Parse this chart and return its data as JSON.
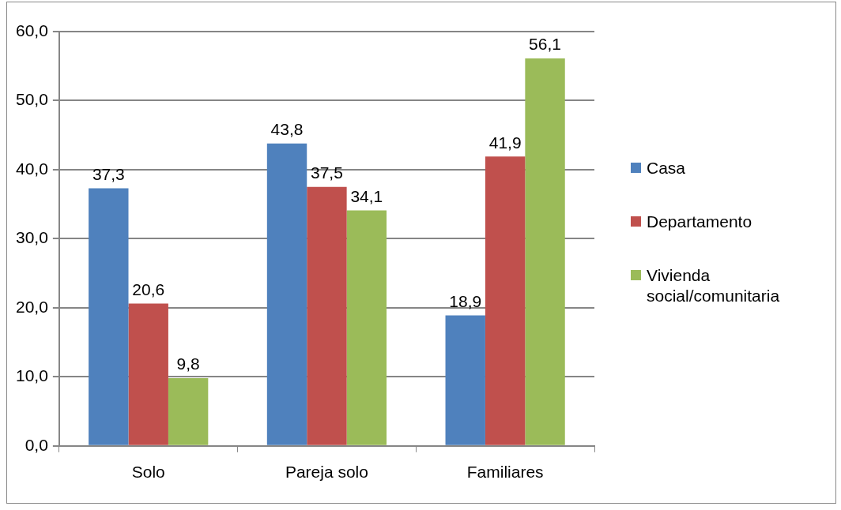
{
  "chart_data": {
    "type": "bar",
    "categories": [
      "Solo",
      "Pareja solo",
      "Familiares"
    ],
    "series": [
      {
        "name": "Casa",
        "color": "#4f81bd",
        "values": [
          37.3,
          43.8,
          18.9
        ],
        "value_labels": [
          "37,3",
          "43,8",
          "18,9"
        ]
      },
      {
        "name": "Departamento",
        "color": "#c0504d",
        "values": [
          20.6,
          37.5,
          41.9
        ],
        "value_labels": [
          "20,6",
          "37,5",
          "41,9"
        ]
      },
      {
        "name": "Vivienda social/comunitaria",
        "color": "#9bbb59",
        "values": [
          9.8,
          34.1,
          56.1
        ],
        "value_labels": [
          "9,8",
          "34,1",
          "56,1"
        ]
      }
    ],
    "ylim": [
      0,
      60
    ],
    "yticks": [
      {
        "value": 0,
        "label": "0,0"
      },
      {
        "value": 10,
        "label": "10,0"
      },
      {
        "value": 20,
        "label": "20,0"
      },
      {
        "value": 30,
        "label": "30,0"
      },
      {
        "value": 40,
        "label": "40,0"
      },
      {
        "value": 50,
        "label": "50,0"
      },
      {
        "value": 60,
        "label": "60,0"
      }
    ],
    "grid": "y",
    "legend": "right"
  }
}
